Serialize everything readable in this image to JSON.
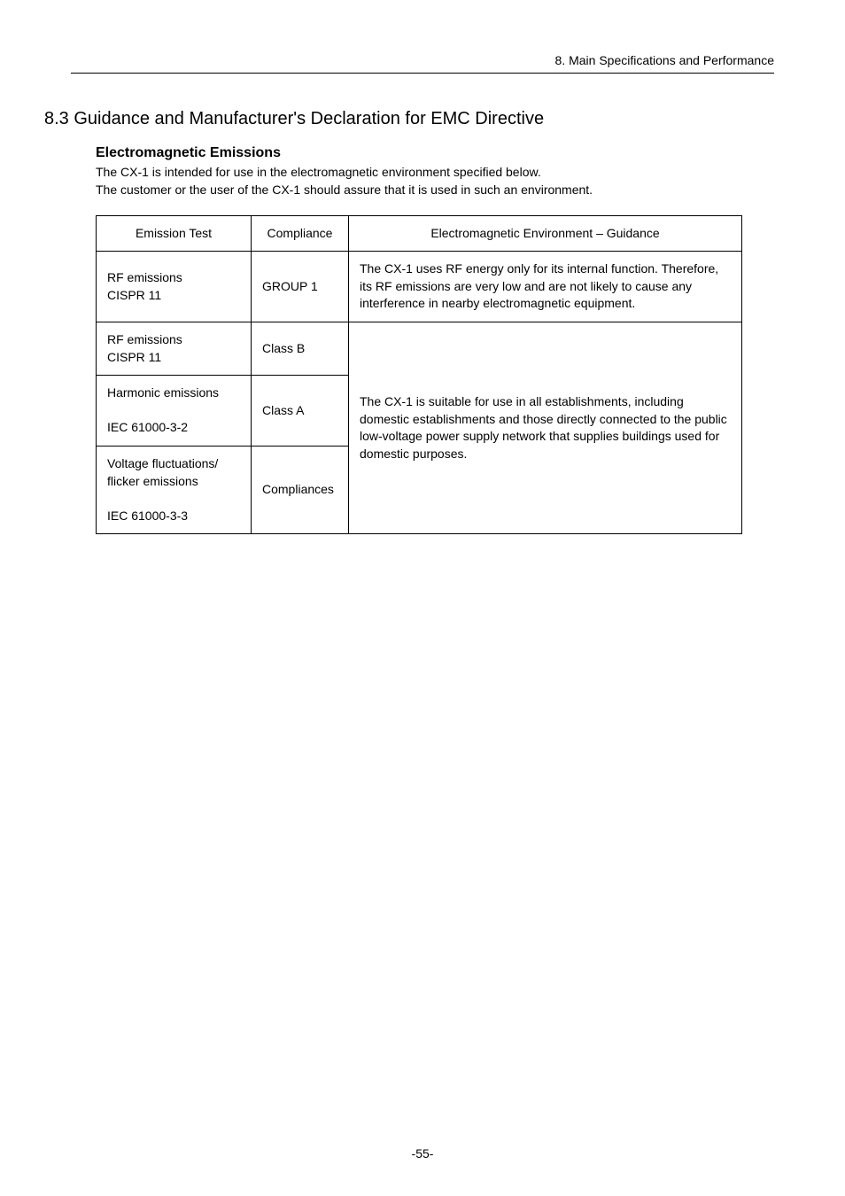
{
  "running_header": "8. Main Specifications and Performance",
  "section_title": "8.3 Guidance and Manufacturer's Declaration for EMC Directive",
  "sub_title": "Electromagnetic Emissions",
  "intro_line1": "The CX-1 is intended for use in the electromagnetic environment specified below.",
  "intro_line2": "The customer or the user of the CX-1 should assure that it is used in such an environment.",
  "table": {
    "headers": {
      "emission_test": "Emission Test",
      "compliance": "Compliance",
      "guidance": "Electromagnetic Environment – Guidance"
    },
    "rows": {
      "r1_test": "RF emissions\nCISPR 11",
      "r1_compliance": "GROUP 1",
      "r1_guidance": "The CX-1 uses RF energy only for its internal function. Therefore, its RF emissions are very low and are not likely to cause any interference in nearby electromagnetic equipment.",
      "r2_test": "RF emissions\nCISPR 11",
      "r2_compliance": "Class B",
      "r3_test": "Harmonic emissions\n\nIEC 61000-3-2",
      "r3_compliance": "Class A",
      "r4_test": "Voltage fluctuations/\nflicker emissions\n\nIEC 61000-3-3",
      "r4_compliance": "Compliances",
      "shared_guidance": "The CX-1 is suitable for use in all establishments, including domestic establishments and those directly connected to the public low-voltage power supply network that supplies buildings used for domestic purposes."
    }
  },
  "page_number": "-55-"
}
